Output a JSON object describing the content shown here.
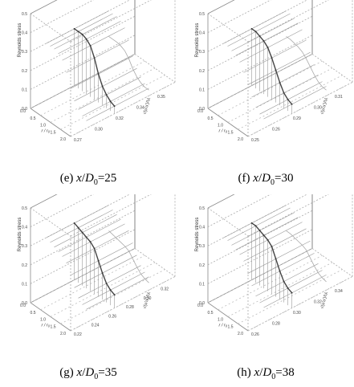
{
  "chart_data": [
    {
      "type": "scatter",
      "caption": {
        "label": "(e)",
        "x": "x",
        "d": "D",
        "sub": "0",
        "value": "=25"
      },
      "zlabel": "Reynolds stress",
      "xlabel": "r / r₀",
      "ylabel": "√(u'u')/Uᵢ",
      "z_ticks": [
        "0.0",
        "0.1",
        "0.2",
        "0.3",
        "0.4",
        "0.5"
      ],
      "x_ticks": [
        "0.0",
        "0.5",
        "1.0",
        "1.5",
        "2.0"
      ],
      "y_ticks": [
        "0.27",
        "0.30",
        "0.32",
        "0.34",
        "0.35",
        "0.36"
      ],
      "zlim": [
        0,
        0.5
      ],
      "xlim": [
        0,
        2.0
      ],
      "series": [
        {
          "x": [
            0.0,
            0.2,
            0.4,
            0.6,
            0.8,
            1.0,
            1.2,
            1.4,
            1.6,
            1.8,
            2.0
          ],
          "z": [
            0.3,
            0.3,
            0.3,
            0.29,
            0.27,
            0.22,
            0.15,
            0.1,
            0.07,
            0.05,
            0.04
          ]
        }
      ]
    },
    {
      "type": "scatter",
      "caption": {
        "label": "(f)",
        "x": "x",
        "d": "D",
        "sub": "0",
        "value": "=30"
      },
      "zlabel": "Reynolds stress",
      "xlabel": "r / r₀",
      "ylabel": "√(u'u')/Uᵢ",
      "z_ticks": [
        "0.0",
        "0.1",
        "0.2",
        "0.3",
        "0.4",
        "0.5"
      ],
      "x_ticks": [
        "0.0",
        "0.5",
        "1.0",
        "1.5",
        "2.0"
      ],
      "y_ticks": [
        "0.25",
        "0.26",
        "0.29",
        "0.30",
        "0.31",
        "0.33"
      ],
      "zlim": [
        0,
        0.5
      ],
      "xlim": [
        0,
        2.0
      ],
      "series": [
        {
          "x": [
            0.0,
            0.2,
            0.4,
            0.6,
            0.8,
            1.0,
            1.2,
            1.4,
            1.6,
            1.8,
            2.0
          ],
          "z": [
            0.3,
            0.3,
            0.29,
            0.28,
            0.26,
            0.22,
            0.17,
            0.12,
            0.08,
            0.06,
            0.05
          ]
        }
      ]
    },
    {
      "type": "scatter",
      "caption": {
        "label": "(g)",
        "x": "x",
        "d": "D",
        "sub": "0",
        "value": "=35"
      },
      "zlabel": "Reynolds stress",
      "xlabel": "r / r₀",
      "ylabel": "√(u'u')/Uᵢ",
      "z_ticks": [
        "0.0",
        "0.1",
        "0.2",
        "0.3",
        "0.4",
        "0.5"
      ],
      "x_ticks": [
        "0.0",
        "0.5",
        "1.0",
        "1.5",
        "2.0"
      ],
      "y_ticks": [
        "0.22",
        "0.24",
        "0.26",
        "0.28",
        "0.30",
        "0.32",
        "0.34"
      ],
      "zlim": [
        0,
        0.5
      ],
      "xlim": [
        0,
        2.0
      ],
      "series": [
        {
          "x": [
            0.0,
            0.2,
            0.4,
            0.6,
            0.8,
            1.0,
            1.2,
            1.4,
            1.6,
            1.8,
            2.0
          ],
          "z": [
            0.3,
            0.29,
            0.28,
            0.27,
            0.26,
            0.24,
            0.19,
            0.14,
            0.1,
            0.08,
            0.07
          ]
        }
      ]
    },
    {
      "type": "scatter",
      "caption": {
        "label": "(h)",
        "x": "x",
        "d": "D",
        "sub": "0",
        "value": "=38"
      },
      "zlabel": "Reynolds stress",
      "xlabel": "r / r₀",
      "ylabel": "√(u'u')/Uᵢ",
      "z_ticks": [
        "0.0",
        "0.1",
        "0.2",
        "0.3",
        "0.4",
        "0.5"
      ],
      "x_ticks": [
        "0.0",
        "0.5",
        "1.0",
        "1.5",
        "2.0"
      ],
      "y_ticks": [
        "0.26",
        "0.28",
        "0.30",
        "0.32",
        "0.34",
        "0.36"
      ],
      "zlim": [
        0,
        0.5
      ],
      "xlim": [
        0,
        2.0
      ],
      "series": [
        {
          "x": [
            0.0,
            0.2,
            0.4,
            0.6,
            0.8,
            1.0,
            1.2,
            1.4,
            1.6,
            1.8,
            2.0
          ],
          "z": [
            0.3,
            0.3,
            0.29,
            0.28,
            0.27,
            0.25,
            0.2,
            0.15,
            0.11,
            0.09,
            0.08
          ]
        }
      ]
    }
  ]
}
